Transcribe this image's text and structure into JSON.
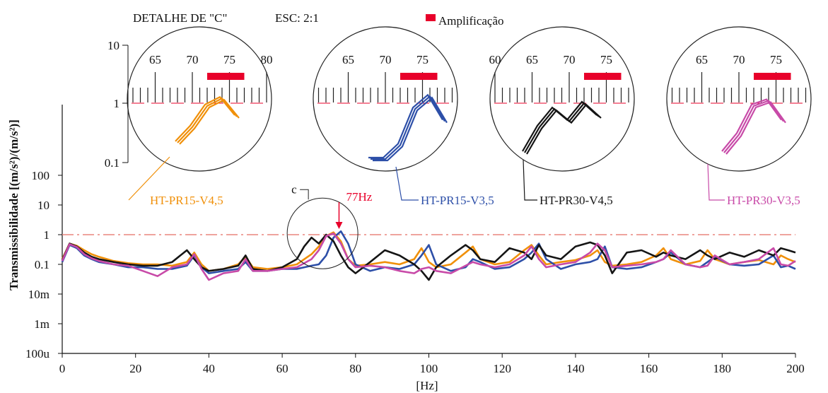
{
  "chart_data": {
    "type": "line",
    "title": "",
    "xlabel": "[Hz]",
    "ylabel": "Transmissibilidade [(m/s²)/(m/s²)]",
    "scale": "log",
    "xlim": [
      0,
      200
    ],
    "ylim": [
      0.0001,
      1000
    ],
    "x_ticks": [
      0,
      20,
      40,
      60,
      80,
      100,
      120,
      140,
      160,
      180,
      200
    ],
    "y_ticks": [
      {
        "v": 0.0001,
        "label": "100u"
      },
      {
        "v": 0.001,
        "label": "1m"
      },
      {
        "v": 0.01,
        "label": "10m"
      },
      {
        "v": 0.1,
        "label": "0.1"
      },
      {
        "v": 1,
        "label": "1"
      },
      {
        "v": 10,
        "label": "10"
      },
      {
        "v": 100,
        "label": "100"
      }
    ],
    "reference_line": {
      "value": 1,
      "color": "#e8857f"
    },
    "annotations": {
      "marker": "c",
      "peak_label": "77Hz",
      "peak_x": 77,
      "peak_color": "#e8002a"
    },
    "detail_caption": "DETALHE DE \"C\"",
    "detail_scale": "ESC: 2:1",
    "amplification_legend": "Amplificação",
    "amplification_color": "#e8002a",
    "inset_yticks": [
      "10",
      "1",
      "0.1"
    ],
    "inset_xticks": [
      60,
      65,
      70,
      75,
      80
    ],
    "inset_band": [
      72,
      77
    ],
    "series": [
      {
        "name": "HT-PR15-V4,5",
        "color": "#f0900a",
        "x": [
          0,
          2,
          4,
          6,
          8,
          10,
          14,
          18,
          22,
          26,
          30,
          34,
          36,
          38,
          40,
          44,
          48,
          50,
          52,
          56,
          60,
          64,
          68,
          70,
          72,
          74,
          76,
          78,
          80,
          84,
          88,
          92,
          96,
          98,
          100,
          102,
          106,
          110,
          112,
          114,
          118,
          122,
          126,
          128,
          130,
          132,
          136,
          140,
          144,
          146,
          148,
          150,
          154,
          158,
          162,
          164,
          166,
          170,
          174,
          176,
          178,
          182,
          186,
          190,
          194,
          196,
          198,
          200
        ],
        "y": [
          0.15,
          0.5,
          0.42,
          0.3,
          0.22,
          0.18,
          0.13,
          0.11,
          0.1,
          0.1,
          0.09,
          0.12,
          0.25,
          0.1,
          0.06,
          0.07,
          0.1,
          0.18,
          0.08,
          0.07,
          0.08,
          0.1,
          0.22,
          0.4,
          0.9,
          1.2,
          0.6,
          0.15,
          0.09,
          0.1,
          0.12,
          0.1,
          0.15,
          0.35,
          0.12,
          0.08,
          0.1,
          0.25,
          0.4,
          0.15,
          0.1,
          0.12,
          0.3,
          0.45,
          0.2,
          0.1,
          0.12,
          0.14,
          0.2,
          0.3,
          0.12,
          0.09,
          0.1,
          0.12,
          0.2,
          0.35,
          0.15,
          0.1,
          0.13,
          0.3,
          0.15,
          0.1,
          0.12,
          0.14,
          0.1,
          0.2,
          0.15,
          0.12
        ]
      },
      {
        "name": "HT-PR15-V3,5",
        "color": "#2d4fa8",
        "x": [
          0,
          2,
          4,
          6,
          8,
          10,
          14,
          18,
          22,
          26,
          30,
          34,
          36,
          38,
          40,
          44,
          48,
          50,
          52,
          56,
          60,
          64,
          68,
          70,
          72,
          74,
          76,
          78,
          80,
          84,
          88,
          92,
          96,
          98,
          100,
          102,
          106,
          110,
          112,
          114,
          118,
          122,
          126,
          128,
          130,
          132,
          136,
          140,
          144,
          146,
          148,
          150,
          154,
          158,
          162,
          164,
          166,
          170,
          174,
          176,
          178,
          182,
          186,
          190,
          194,
          196,
          198,
          200
        ],
        "y": [
          0.12,
          0.45,
          0.35,
          0.2,
          0.15,
          0.12,
          0.1,
          0.08,
          0.08,
          0.07,
          0.07,
          0.09,
          0.2,
          0.08,
          0.05,
          0.06,
          0.07,
          0.12,
          0.06,
          0.06,
          0.07,
          0.07,
          0.09,
          0.1,
          0.2,
          0.8,
          1.3,
          0.5,
          0.1,
          0.06,
          0.08,
          0.07,
          0.1,
          0.2,
          0.45,
          0.1,
          0.06,
          0.08,
          0.15,
          0.12,
          0.07,
          0.08,
          0.15,
          0.25,
          0.5,
          0.15,
          0.07,
          0.1,
          0.12,
          0.15,
          0.4,
          0.08,
          0.07,
          0.08,
          0.12,
          0.15,
          0.25,
          0.1,
          0.08,
          0.12,
          0.18,
          0.1,
          0.09,
          0.1,
          0.2,
          0.08,
          0.09,
          0.07
        ]
      },
      {
        "name": "HT-PR30-V4,5",
        "color": "#151515",
        "x": [
          0,
          2,
          4,
          6,
          8,
          10,
          14,
          18,
          22,
          26,
          30,
          34,
          36,
          38,
          40,
          44,
          48,
          50,
          52,
          56,
          60,
          64,
          66,
          68,
          70,
          72,
          74,
          76,
          78,
          80,
          84,
          88,
          92,
          96,
          98,
          100,
          102,
          106,
          110,
          112,
          114,
          118,
          122,
          126,
          128,
          130,
          132,
          136,
          140,
          144,
          146,
          148,
          150,
          154,
          158,
          162,
          164,
          166,
          170,
          174,
          176,
          178,
          182,
          186,
          190,
          194,
          196,
          198,
          200
        ],
        "y": [
          0.14,
          0.5,
          0.4,
          0.25,
          0.18,
          0.15,
          0.12,
          0.1,
          0.09,
          0.09,
          0.12,
          0.3,
          0.15,
          0.08,
          0.06,
          0.07,
          0.09,
          0.2,
          0.07,
          0.06,
          0.08,
          0.15,
          0.4,
          0.8,
          0.5,
          1.0,
          0.6,
          0.2,
          0.08,
          0.05,
          0.12,
          0.3,
          0.2,
          0.1,
          0.06,
          0.03,
          0.08,
          0.2,
          0.45,
          0.3,
          0.15,
          0.12,
          0.35,
          0.25,
          0.15,
          0.45,
          0.2,
          0.15,
          0.4,
          0.55,
          0.45,
          0.2,
          0.05,
          0.25,
          0.3,
          0.18,
          0.25,
          0.2,
          0.15,
          0.3,
          0.2,
          0.15,
          0.25,
          0.18,
          0.3,
          0.2,
          0.35,
          0.3,
          0.25
        ]
      },
      {
        "name": "HT-PR30-V3,5",
        "color": "#c84aa8",
        "x": [
          0,
          2,
          4,
          6,
          8,
          10,
          14,
          18,
          22,
          26,
          30,
          34,
          36,
          38,
          40,
          44,
          48,
          50,
          52,
          56,
          60,
          64,
          68,
          70,
          72,
          74,
          76,
          78,
          80,
          84,
          88,
          92,
          96,
          98,
          100,
          102,
          106,
          110,
          112,
          114,
          118,
          122,
          126,
          128,
          130,
          132,
          136,
          140,
          144,
          146,
          148,
          150,
          154,
          158,
          162,
          164,
          166,
          170,
          174,
          176,
          178,
          182,
          186,
          190,
          194,
          196,
          198,
          200
        ],
        "y": [
          0.13,
          0.48,
          0.38,
          0.22,
          0.16,
          0.13,
          0.1,
          0.09,
          0.06,
          0.04,
          0.08,
          0.1,
          0.22,
          0.07,
          0.03,
          0.05,
          0.06,
          0.15,
          0.06,
          0.06,
          0.07,
          0.08,
          0.15,
          0.3,
          0.9,
          1.1,
          0.5,
          0.15,
          0.08,
          0.09,
          0.08,
          0.06,
          0.05,
          0.07,
          0.08,
          0.06,
          0.05,
          0.09,
          0.12,
          0.1,
          0.08,
          0.1,
          0.2,
          0.4,
          0.15,
          0.08,
          0.1,
          0.12,
          0.25,
          0.5,
          0.3,
          0.08,
          0.09,
          0.1,
          0.12,
          0.15,
          0.3,
          0.1,
          0.08,
          0.09,
          0.2,
          0.1,
          0.12,
          0.15,
          0.35,
          0.1,
          0.09,
          0.13
        ]
      }
    ]
  }
}
